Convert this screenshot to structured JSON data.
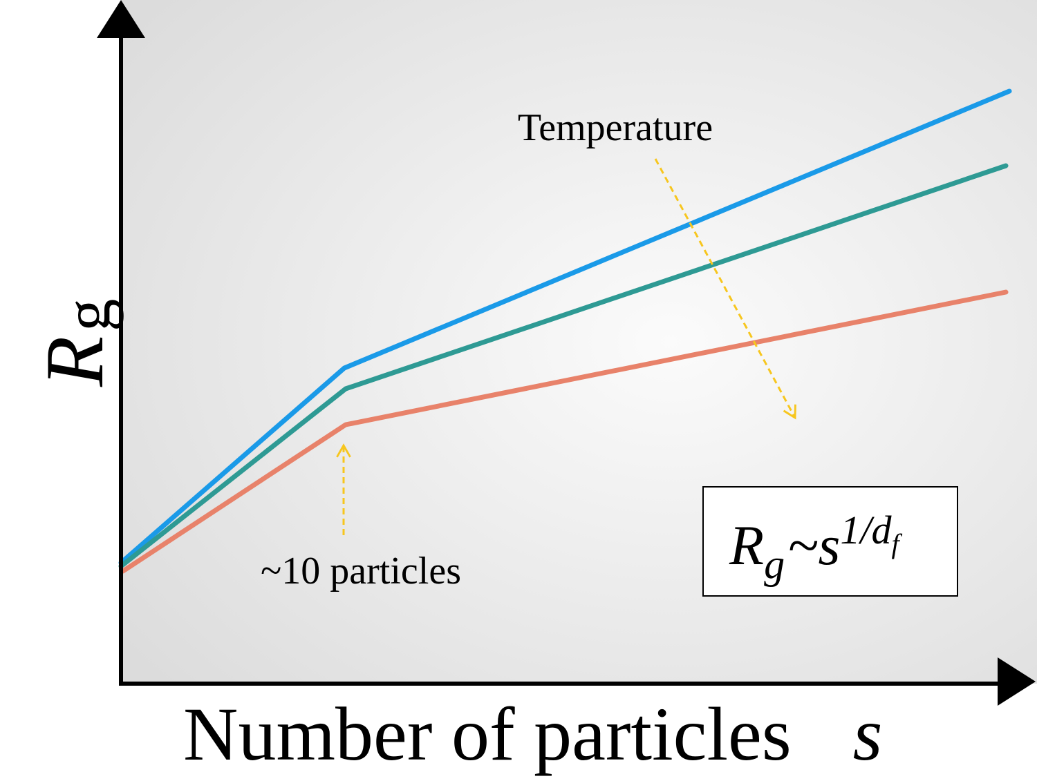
{
  "axes": {
    "y_label": {
      "symbol": "R",
      "subscript": "g"
    },
    "x_label": {
      "text": "Number of particles",
      "symbol": "s"
    }
  },
  "annotations": {
    "temperature": "Temperature",
    "crossover": "~10 particles"
  },
  "formula_box": {
    "lhs": "R",
    "lhs_subscript": "g",
    "relation": "~s",
    "exponent": "1/d",
    "exponent_subscript": "f"
  }
}
